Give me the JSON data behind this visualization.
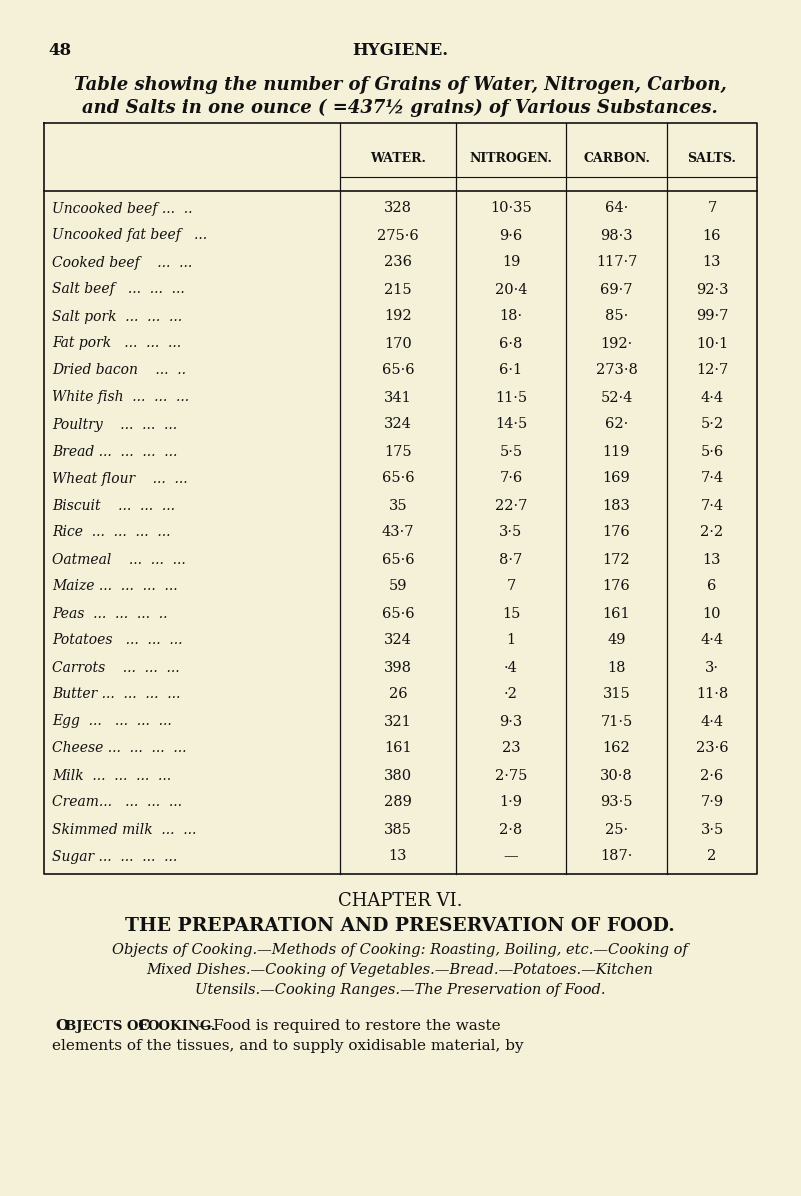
{
  "page_number": "48",
  "page_header": "HYGIENE.",
  "bg_color": "#f5f0d8",
  "title_line1": "Table showing the number of Grains of Water, Nitrogen, Carbon,",
  "title_line2": "and Salts in one ounce ( =437½ grains) of Various Substances.",
  "col_headers": [
    "WATER.",
    "NITROGEN.",
    "CARBON.",
    "SALTS."
  ],
  "rows": [
    [
      "Uncooked beef ...  ..",
      "328",
      "10·35",
      "64·",
      "7"
    ],
    [
      "Uncooked fat beef   ...",
      "275·6",
      "9·6",
      "98·3",
      "16"
    ],
    [
      "Cooked beef    ...  ...",
      "236",
      "19",
      "117·7",
      "13"
    ],
    [
      "Salt beef   ...  ...  ...",
      "215",
      "20·4",
      "69·7",
      "92·3"
    ],
    [
      "Salt pork  ...  ...  ...",
      "192",
      "18·",
      "85·",
      "99·7"
    ],
    [
      "Fat pork   ...  ...  ...",
      "170",
      "6·8",
      "192·",
      "10·1"
    ],
    [
      "Dried bacon    ...  ..",
      "65·6",
      "6·1",
      "273·8",
      "12·7"
    ],
    [
      "White fish  ...  ...  ...",
      "341",
      "11·5",
      "52·4",
      "4·4"
    ],
    [
      "Poultry    ...  ...  ...",
      "324",
      "14·5",
      "62·",
      "5·2"
    ],
    [
      "Bread ...  ...  ...  ...",
      "175",
      "5·5",
      "119",
      "5·6"
    ],
    [
      "Wheat flour    ...  ...",
      "65·6",
      "7·6",
      "169",
      "7·4"
    ],
    [
      "Biscuit    ...  ...  ...",
      "35",
      "22·7",
      "183",
      "7·4"
    ],
    [
      "Rice  ...  ...  ...  ...",
      "43·7",
      "3·5",
      "176",
      "2·2"
    ],
    [
      "Oatmeal    ...  ...  ...",
      "65·6",
      "8·7",
      "172",
      "13"
    ],
    [
      "Maize ...  ...  ...  ...",
      "59",
      "7",
      "176",
      "6"
    ],
    [
      "Peas  ...  ...  ...  ..",
      "65·6",
      "15",
      "161",
      "10"
    ],
    [
      "Potatoes   ...  ...  ...",
      "324",
      "1",
      "49",
      "4·4"
    ],
    [
      "Carrots    ...  ...  ...",
      "398",
      "·4",
      "18",
      "3·"
    ],
    [
      "Butter ...  ...  ...  ...",
      "26",
      "·2",
      "315",
      "11·8"
    ],
    [
      "Egg  ...   ...  ...  ...",
      "321",
      "9·3",
      "71·5",
      "4·4"
    ],
    [
      "Cheese ...  ...  ...  ...",
      "161",
      "23",
      "162",
      "23·6"
    ],
    [
      "Milk  ...  ...  ...  ...",
      "380",
      "2·75",
      "30·8",
      "2·6"
    ],
    [
      "Cream...   ...  ...  ...",
      "289",
      "1·9",
      "93·5",
      "7·9"
    ],
    [
      "Skimmed milk  ...  ...",
      "385",
      "2·8",
      "25·",
      "3·5"
    ],
    [
      "Sugar ...  ...  ...  ...",
      "13",
      "—",
      "187·",
      "2"
    ]
  ],
  "chapter_heading": "CHAPTER VI.",
  "chapter_title": "THE PREPARATION AND PRESERVATION OF FOOD.",
  "italic_lines": [
    "Objects of Cooking.—Methods of Cooking: Roasting, Boiling, etc.—Cooking of",
    "Mixed Dishes.—Cooking of Vegetables.—Bread.—Potatoes.—Kitchen",
    "Utensils.—Cooking Ranges.—The Preservation of Food."
  ],
  "body_smallcaps": "Objects of Cooking.",
  "body_rest1": "—Food is required to restore the waste",
  "body_line2": "elements of the tissues, and to supply oxidisable material, by"
}
